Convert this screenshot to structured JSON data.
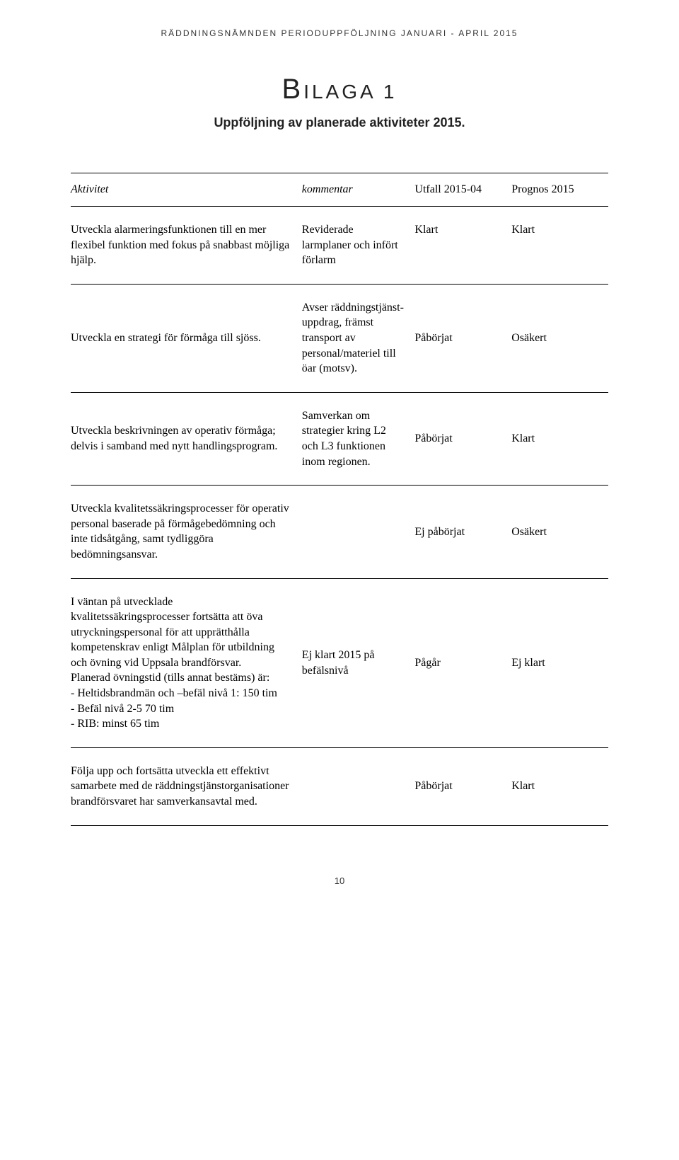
{
  "header": "RÄDDNINGSNÄMNDEN PERIODUPPFÖLJNING JANUARI - APRIL 2015",
  "bilaga_letter": "B",
  "bilaga_rest": "ILAGA 1",
  "subtitle": "Uppföljning av planerade aktiviteter 2015.",
  "columns": {
    "activity": "Aktivitet",
    "comment": "kommentar",
    "outcome": "Utfall 2015-04",
    "prognosis": "Prognos 2015"
  },
  "rows": [
    {
      "activity": "Utveckla alarmeringsfunktionen till en mer flexibel funktion med fokus på snabbast möjliga hjälp.",
      "comment": "Reviderade larmplaner och infört förlarm",
      "outcome": "Klart",
      "prognosis": "Klart"
    },
    {
      "activity": "Utveckla en strategi för förmåga till sjöss.",
      "comment": "Avser räddningstjänst-uppdrag, främst transport av personal/materiel till öar (motsv).",
      "outcome": "Påbörjat",
      "prognosis": "Osäkert"
    },
    {
      "activity": "Utveckla beskrivningen av operativ förmåga; delvis i samband med nytt handlingsprogram.",
      "comment": "Samverkan om strategier kring L2 och L3 funktionen inom regionen.",
      "outcome": "Påbörjat",
      "prognosis": "Klart"
    },
    {
      "activity": "Utveckla kvalitetssäkringsprocesser för operativ personal baserade på förmågebedömning och inte tidsåtgång, samt tydliggöra bedömningsansvar.",
      "comment": "",
      "outcome": "Ej påbörjat",
      "prognosis": "Osäkert"
    },
    {
      "activity": "I väntan på utvecklade kvalitetssäkringsprocesser fortsätta att öva utryckningspersonal för att upprätthålla kompetenskrav enligt Målplan för utbildning och övning vid Uppsala brandförsvar.\nPlanerad övningstid (tills annat bestäms) är:\n- Heltidsbrandmän och –befäl nivå 1: 150 tim\n- Befäl nivå 2-5 70 tim\n- RIB: minst 65 tim",
      "comment": "Ej klart 2015 på befälsnivå",
      "outcome": "Pågår",
      "prognosis": "Ej klart"
    },
    {
      "activity": "Följa upp och fortsätta utveckla ett effektivt samarbete med de räddningstjänstorganisationer brandförsvaret har samverkansavtal med.",
      "comment": "",
      "outcome": "Påbörjat",
      "prognosis": "Klart"
    }
  ],
  "page_number": "10"
}
